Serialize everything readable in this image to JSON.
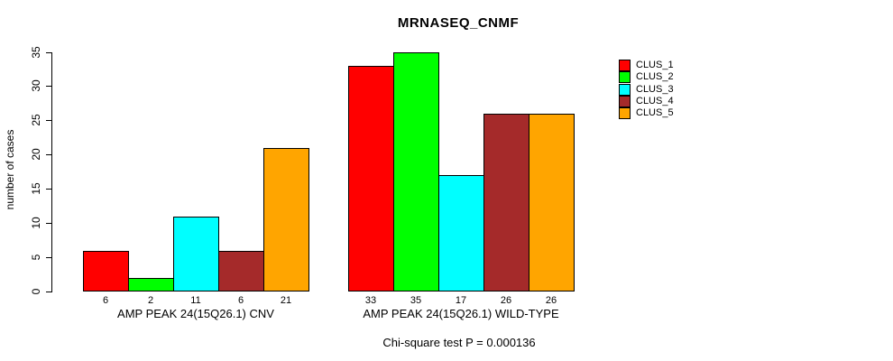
{
  "chart_data": {
    "type": "bar",
    "title": "MRNASEQ_CNMF",
    "ylabel": "number of cases",
    "xlabel": "",
    "ylim": [
      0,
      35
    ],
    "yticks": [
      0,
      5,
      10,
      15,
      20,
      25,
      30,
      35
    ],
    "grid": false,
    "legend_position": "right",
    "categories": [
      "AMP PEAK 24(15Q26.1) CNV",
      "AMP PEAK 24(15Q26.1) WILD-TYPE"
    ],
    "series": [
      {
        "name": "CLUS_1",
        "color": "#ff0000",
        "values": [
          6,
          33
        ]
      },
      {
        "name": "CLUS_2",
        "color": "#00ff00",
        "values": [
          2,
          35
        ]
      },
      {
        "name": "CLUS_3",
        "color": "#00ffff",
        "values": [
          11,
          17
        ]
      },
      {
        "name": "CLUS_4",
        "color": "#a52a2a",
        "values": [
          6,
          26
        ]
      },
      {
        "name": "CLUS_5",
        "color": "#ffa500",
        "values": [
          21,
          26
        ]
      }
    ],
    "show_bar_value_labels": true,
    "annotation": "Chi-square test P = 0.000136"
  },
  "colors": {
    "axis": "#000000",
    "text": "#000000",
    "background": "#ffffff"
  }
}
